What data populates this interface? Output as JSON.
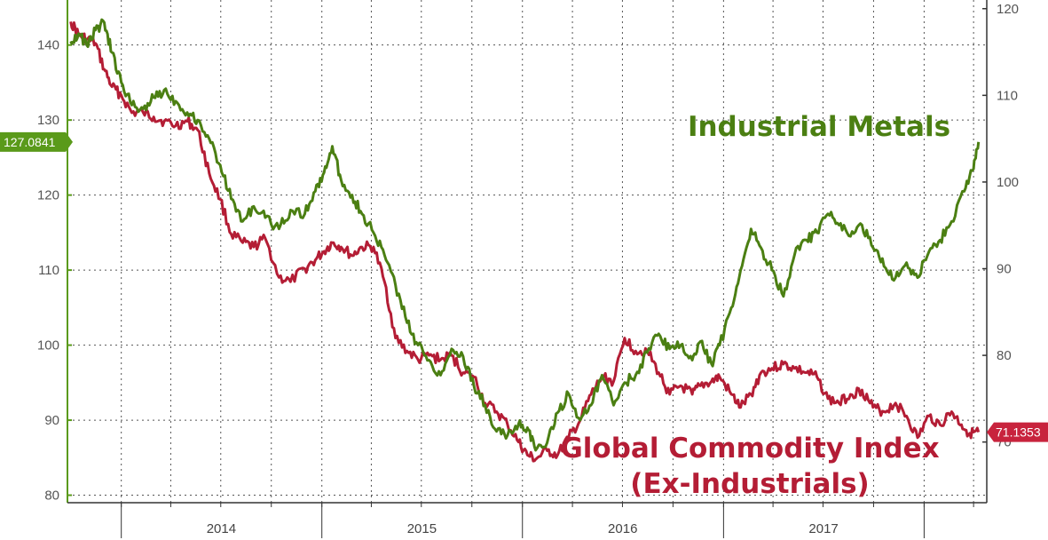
{
  "chart_data": {
    "type": "line",
    "title": "",
    "grid": true,
    "x_labels": [
      "2014",
      "2015",
      "2016",
      "2017"
    ],
    "left_axis": {
      "ticks": [
        80,
        90,
        100,
        110,
        120,
        130,
        140
      ],
      "range": [
        79,
        146
      ]
    },
    "right_axis": {
      "ticks": [
        70,
        80,
        90,
        100,
        110,
        120
      ],
      "range": [
        63,
        121
      ]
    },
    "series": [
      {
        "name": "Industrial Metals",
        "axis": "left",
        "color": "#4b7f12",
        "last_value_tag": "127.0841",
        "points": [
          [
            "2013-10-01",
            140.5
          ],
          [
            "2013-10-15",
            141.5
          ],
          [
            "2013-10-30",
            140.0
          ],
          [
            "2013-11-15",
            142.0
          ],
          [
            "2013-12-01",
            143.0
          ],
          [
            "2013-12-15",
            139.0
          ],
          [
            "2014-01-01",
            135.0
          ],
          [
            "2014-01-20",
            132.0
          ],
          [
            "2014-02-10",
            131.5
          ],
          [
            "2014-03-01",
            133.0
          ],
          [
            "2014-03-20",
            134.0
          ],
          [
            "2014-04-10",
            132.5
          ],
          [
            "2014-05-01",
            131.0
          ],
          [
            "2014-05-20",
            130.0
          ],
          [
            "2014-06-10",
            127.5
          ],
          [
            "2014-06-30",
            124.0
          ],
          [
            "2014-07-20",
            119.5
          ],
          [
            "2014-08-10",
            116.5
          ],
          [
            "2014-08-30",
            118.5
          ],
          [
            "2014-09-20",
            117.0
          ],
          [
            "2014-10-15",
            115.5
          ],
          [
            "2014-11-05",
            118.0
          ],
          [
            "2014-12-01",
            117.5
          ],
          [
            "2014-12-20",
            120.5
          ],
          [
            "2015-01-05",
            123.0
          ],
          [
            "2015-01-20",
            126.5
          ],
          [
            "2015-02-05",
            122.0
          ],
          [
            "2015-02-25",
            120.0
          ],
          [
            "2015-03-15",
            117.5
          ],
          [
            "2015-04-05",
            115.0
          ],
          [
            "2015-04-25",
            112.0
          ],
          [
            "2015-05-15",
            108.0
          ],
          [
            "2015-06-05",
            103.0
          ],
          [
            "2015-06-25",
            100.0
          ],
          [
            "2015-07-15",
            98.0
          ],
          [
            "2015-08-05",
            96.0
          ],
          [
            "2015-08-25",
            99.5
          ],
          [
            "2015-09-15",
            98.5
          ],
          [
            "2015-10-05",
            94.5
          ],
          [
            "2015-10-25",
            92.0
          ],
          [
            "2015-11-15",
            88.5
          ],
          [
            "2015-12-05",
            88.0
          ],
          [
            "2015-12-25",
            89.5
          ],
          [
            "2016-01-10",
            89.0
          ],
          [
            "2016-01-25",
            86.0
          ],
          [
            "2016-02-15",
            87.0
          ],
          [
            "2016-03-05",
            91.0
          ],
          [
            "2016-03-25",
            93.5
          ],
          [
            "2016-04-15",
            90.0
          ],
          [
            "2016-05-05",
            92.0
          ],
          [
            "2016-05-25",
            96.0
          ],
          [
            "2016-06-15",
            92.0
          ],
          [
            "2016-07-05",
            95.0
          ],
          [
            "2016-07-25",
            96.0
          ],
          [
            "2016-08-15",
            99.0
          ],
          [
            "2016-09-05",
            101.5
          ],
          [
            "2016-09-25",
            99.5
          ],
          [
            "2016-10-15",
            100.0
          ],
          [
            "2016-11-05",
            98.0
          ],
          [
            "2016-11-20",
            100.5
          ],
          [
            "2016-12-10",
            97.5
          ],
          [
            "2016-12-25",
            100.0
          ],
          [
            "2017-01-15",
            105.0
          ],
          [
            "2017-02-01",
            110.0
          ],
          [
            "2017-02-20",
            115.5
          ],
          [
            "2017-03-10",
            113.0
          ],
          [
            "2017-03-30",
            110.0
          ],
          [
            "2017-04-20",
            106.5
          ],
          [
            "2017-05-10",
            112.0
          ],
          [
            "2017-06-01",
            114.0
          ],
          [
            "2017-06-20",
            115.0
          ],
          [
            "2017-07-10",
            117.5
          ],
          [
            "2017-07-30",
            116.0
          ],
          [
            "2017-08-20",
            114.5
          ],
          [
            "2017-09-10",
            116.0
          ],
          [
            "2017-09-30",
            113.0
          ],
          [
            "2017-10-20",
            110.5
          ],
          [
            "2017-11-10",
            109.0
          ],
          [
            "2017-11-30",
            111.0
          ],
          [
            "2017-12-20",
            109.0
          ],
          [
            "2018-01-10",
            112.5
          ],
          [
            "2018-01-30",
            114.0
          ],
          [
            "2018-02-20",
            116.5
          ],
          [
            "2018-03-15",
            120.5
          ],
          [
            "2018-04-01",
            123.5
          ],
          [
            "2018-04-10",
            127.08
          ]
        ]
      },
      {
        "name": "Global Commodity Index",
        "name_line2": "(Ex-Industrials)",
        "axis": "right",
        "color": "#b41d35",
        "last_value_tag": "71.1353",
        "points": [
          [
            "2013-10-01",
            118.5
          ],
          [
            "2013-10-15",
            117.0
          ],
          [
            "2013-10-30",
            116.5
          ],
          [
            "2013-11-15",
            116.0
          ],
          [
            "2013-12-01",
            113.0
          ],
          [
            "2013-12-15",
            111.0
          ],
          [
            "2014-01-01",
            110.0
          ],
          [
            "2014-01-20",
            108.0
          ],
          [
            "2014-02-10",
            108.0
          ],
          [
            "2014-03-01",
            107.5
          ],
          [
            "2014-03-20",
            107.0
          ],
          [
            "2014-04-10",
            106.5
          ],
          [
            "2014-05-01",
            107.0
          ],
          [
            "2014-05-20",
            106.0
          ],
          [
            "2014-06-10",
            101.0
          ],
          [
            "2014-06-30",
            98.0
          ],
          [
            "2014-07-20",
            94.0
          ],
          [
            "2014-08-10",
            93.0
          ],
          [
            "2014-08-30",
            92.5
          ],
          [
            "2014-09-20",
            93.5
          ],
          [
            "2014-10-15",
            89.0
          ],
          [
            "2014-11-05",
            88.5
          ],
          [
            "2014-12-01",
            90.0
          ],
          [
            "2014-12-20",
            91.0
          ],
          [
            "2015-01-05",
            92.0
          ],
          [
            "2015-01-20",
            93.0
          ],
          [
            "2015-02-05",
            92.5
          ],
          [
            "2015-02-25",
            91.5
          ],
          [
            "2015-03-15",
            92.5
          ],
          [
            "2015-04-05",
            92.5
          ],
          [
            "2015-04-25",
            88.5
          ],
          [
            "2015-05-15",
            82.0
          ],
          [
            "2015-06-05",
            80.5
          ],
          [
            "2015-06-25",
            79.5
          ],
          [
            "2015-07-15",
            80.0
          ],
          [
            "2015-08-05",
            79.5
          ],
          [
            "2015-08-25",
            80.0
          ],
          [
            "2015-09-15",
            78.0
          ],
          [
            "2015-10-05",
            77.5
          ],
          [
            "2015-10-25",
            74.5
          ],
          [
            "2015-11-15",
            73.5
          ],
          [
            "2015-12-05",
            72.0
          ],
          [
            "2015-12-25",
            70.0
          ],
          [
            "2016-01-10",
            68.5
          ],
          [
            "2016-01-25",
            68.0
          ],
          [
            "2016-02-15",
            69.0
          ],
          [
            "2016-03-05",
            68.5
          ],
          [
            "2016-03-25",
            70.5
          ],
          [
            "2016-04-15",
            72.5
          ],
          [
            "2016-05-05",
            75.5
          ],
          [
            "2016-05-25",
            77.5
          ],
          [
            "2016-06-15",
            77.0
          ],
          [
            "2016-07-05",
            82.0
          ],
          [
            "2016-07-25",
            80.5
          ],
          [
            "2016-08-15",
            80.5
          ],
          [
            "2016-09-05",
            78.0
          ],
          [
            "2016-09-25",
            75.5
          ],
          [
            "2016-10-15",
            76.5
          ],
          [
            "2016-11-05",
            75.5
          ],
          [
            "2016-11-20",
            76.5
          ],
          [
            "2016-12-10",
            77.0
          ],
          [
            "2016-12-25",
            77.5
          ],
          [
            "2017-01-15",
            75.5
          ],
          [
            "2017-02-01",
            74.0
          ],
          [
            "2017-02-20",
            75.5
          ],
          [
            "2017-03-10",
            78.0
          ],
          [
            "2017-03-30",
            78.5
          ],
          [
            "2017-04-20",
            79.0
          ],
          [
            "2017-05-10",
            78.5
          ],
          [
            "2017-06-01",
            78.0
          ],
          [
            "2017-06-20",
            77.5
          ],
          [
            "2017-07-10",
            75.0
          ],
          [
            "2017-07-30",
            74.5
          ],
          [
            "2017-08-20",
            75.5
          ],
          [
            "2017-09-10",
            76.0
          ],
          [
            "2017-09-30",
            74.0
          ],
          [
            "2017-10-20",
            73.5
          ],
          [
            "2017-11-10",
            74.5
          ],
          [
            "2017-11-30",
            73.0
          ],
          [
            "2017-12-20",
            70.5
          ],
          [
            "2018-01-10",
            73.0
          ],
          [
            "2018-01-30",
            72.0
          ],
          [
            "2018-02-20",
            73.5
          ],
          [
            "2018-03-10",
            72.0
          ],
          [
            "2018-03-25",
            71.0
          ],
          [
            "2018-04-10",
            71.14
          ]
        ]
      }
    ]
  }
}
